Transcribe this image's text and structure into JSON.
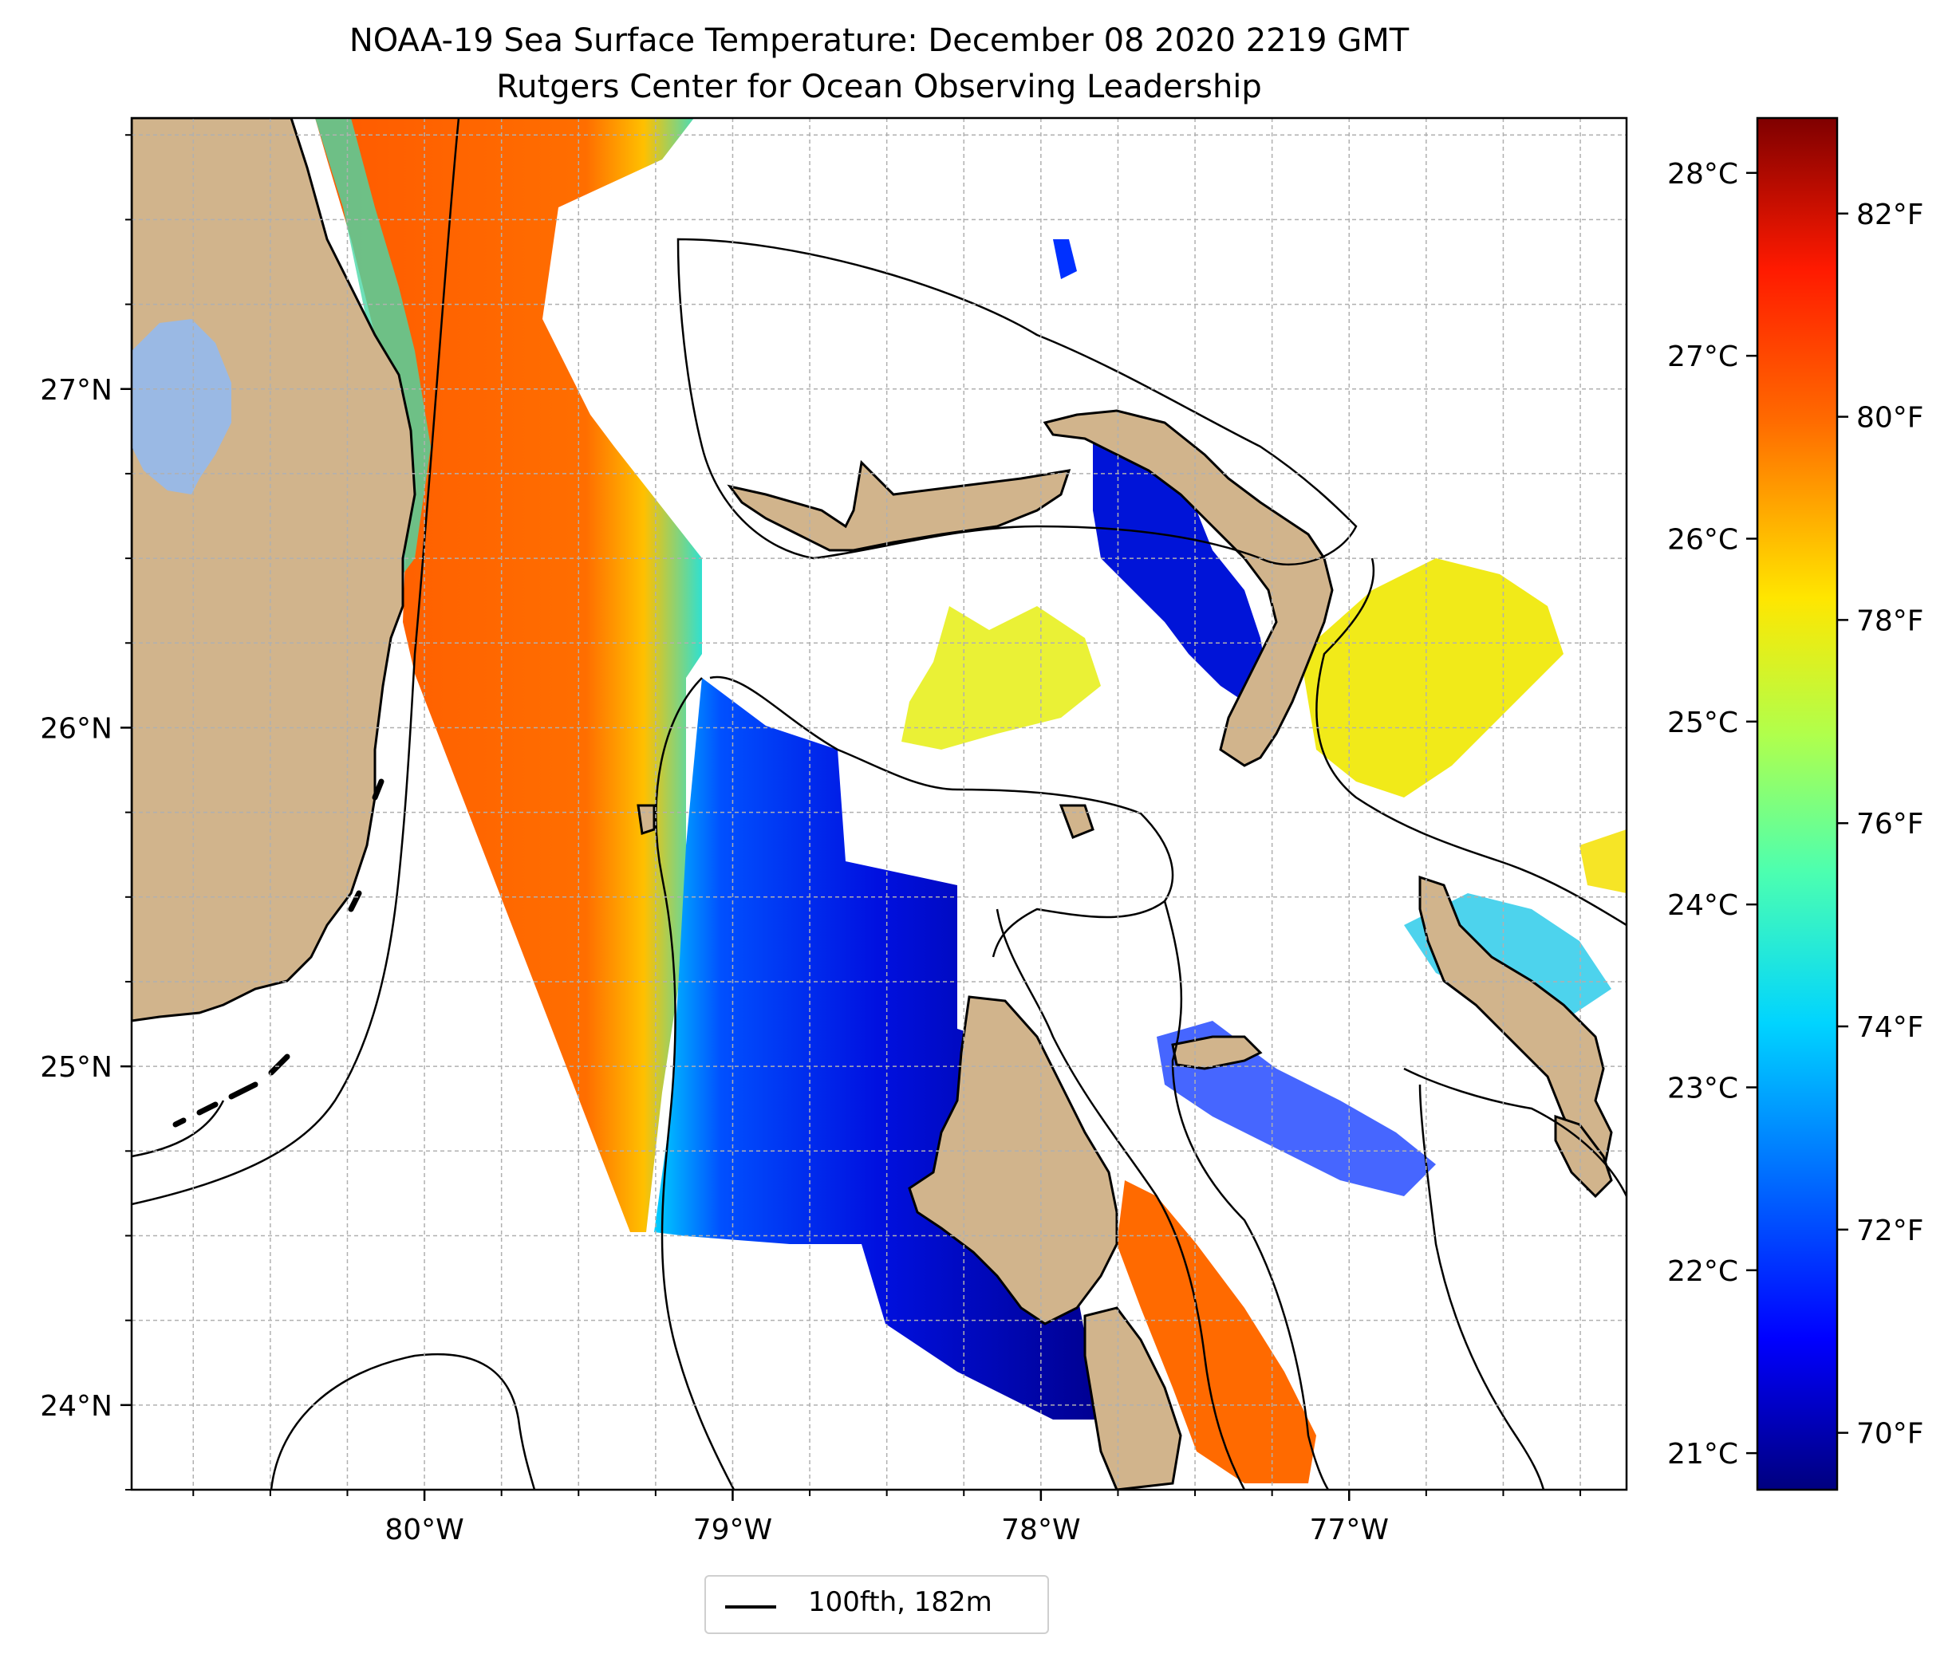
{
  "title": {
    "line1": "NOAA-19 Sea Surface Temperature: December 08 2020 2219 GMT",
    "line2": "Rutgers Center for Ocean Observing Leadership"
  },
  "map": {
    "lon_range": [
      -80.95,
      -76.1
    ],
    "lat_range": [
      23.75,
      27.8
    ],
    "lon_ticks": [
      {
        "value": -80,
        "label": "80°W"
      },
      {
        "value": -79,
        "label": "79°W"
      },
      {
        "value": -78,
        "label": "78°W"
      },
      {
        "value": -77,
        "label": "77°W"
      }
    ],
    "lat_ticks": [
      {
        "value": 24,
        "label": "24°N"
      },
      {
        "value": 25,
        "label": "25°N"
      },
      {
        "value": 26,
        "label": "26°N"
      },
      {
        "value": 27,
        "label": "27°N"
      }
    ],
    "grid": true,
    "land_color": "#d1b48c",
    "lake_color": "#9ab9e4",
    "no_data_color": "#ffffff",
    "contour_color": "#000000"
  },
  "colorbar": {
    "celsius_range": [
      20.8,
      28.3
    ],
    "celsius_ticks": [
      {
        "value": 21,
        "label": "21°C"
      },
      {
        "value": 22,
        "label": "22°C"
      },
      {
        "value": 23,
        "label": "23°C"
      },
      {
        "value": 24,
        "label": "24°C"
      },
      {
        "value": 25,
        "label": "25°C"
      },
      {
        "value": 26,
        "label": "26°C"
      },
      {
        "value": 27,
        "label": "27°C"
      },
      {
        "value": 28,
        "label": "28°C"
      }
    ],
    "fahrenheit_ticks": [
      {
        "value": 70,
        "label": "70°F"
      },
      {
        "value": 72,
        "label": "72°F"
      },
      {
        "value": 74,
        "label": "74°F"
      },
      {
        "value": 76,
        "label": "76°F"
      },
      {
        "value": 78,
        "label": "78°F"
      },
      {
        "value": 80,
        "label": "80°F"
      },
      {
        "value": 82,
        "label": "82°F"
      }
    ],
    "colormap": "jet",
    "colormap_stops": [
      "#00007f",
      "#0000ff",
      "#007fff",
      "#00ffff",
      "#7fff7f",
      "#ffff00",
      "#ff7f00",
      "#ff0000",
      "#7f0000"
    ]
  },
  "legend": {
    "label": "100fth, 182m"
  }
}
